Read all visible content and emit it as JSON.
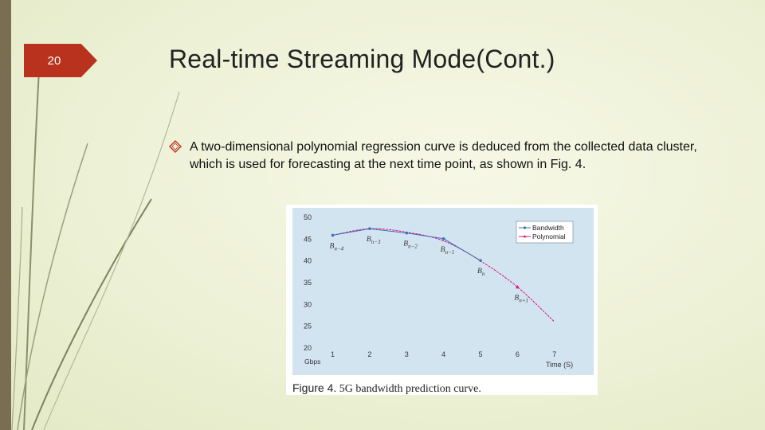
{
  "slide": {
    "number": "20",
    "title": "Real-time Streaming Mode(Cont.)",
    "bullet": "A two-dimensional polynomial regression curve is deduced from the collected data cluster, which is used for forecasting at the next time point, as shown in Fig. 4.",
    "bullet_icon": "diamond-outline-icon"
  },
  "figure": {
    "caption_tag": "Figure 4.",
    "caption_text": "5G bandwidth prediction curve."
  },
  "chart_data": {
    "type": "line",
    "x_ticks": [
      1,
      2,
      3,
      4,
      5,
      6,
      7
    ],
    "y_ticks": [
      20,
      25,
      30,
      35,
      40,
      45,
      50
    ],
    "xlim": [
      0.6,
      7.5
    ],
    "ylim": [
      20,
      50
    ],
    "xlabel": "Time (S)",
    "ylabel": "Gbps",
    "grid": false,
    "legend_position": "top-right",
    "colors": {
      "plot_bg": "#d3e4f1",
      "bandwidth": "#3f6fb5",
      "polynomial": "#d6147e"
    },
    "series": [
      {
        "name": "Bandwidth",
        "x": [
          1,
          2,
          3,
          4,
          5
        ],
        "y": [
          45.9,
          47.4,
          46.4,
          45.1,
          40.1
        ]
      },
      {
        "name": "Polynomial",
        "x": [
          1,
          2,
          3,
          4,
          5,
          6,
          7
        ],
        "y": [
          45.9,
          47.4,
          46.6,
          44.6,
          40.0,
          34.0,
          26.0
        ],
        "marked_x": [
          6
        ]
      }
    ],
    "annotations": [
      {
        "base": "B",
        "sub": "n−4",
        "x": 1,
        "y": 45.9
      },
      {
        "base": "B",
        "sub": "n−3",
        "x": 2,
        "y": 47.4
      },
      {
        "base": "B",
        "sub": "n−2",
        "x": 3,
        "y": 46.4
      },
      {
        "base": "B",
        "sub": "n−1",
        "x": 4,
        "y": 45.1
      },
      {
        "base": "B",
        "sub": "n",
        "x": 5,
        "y": 40.1
      },
      {
        "base": "B",
        "sub": "n+1",
        "x": 6,
        "y": 34.0
      }
    ]
  }
}
